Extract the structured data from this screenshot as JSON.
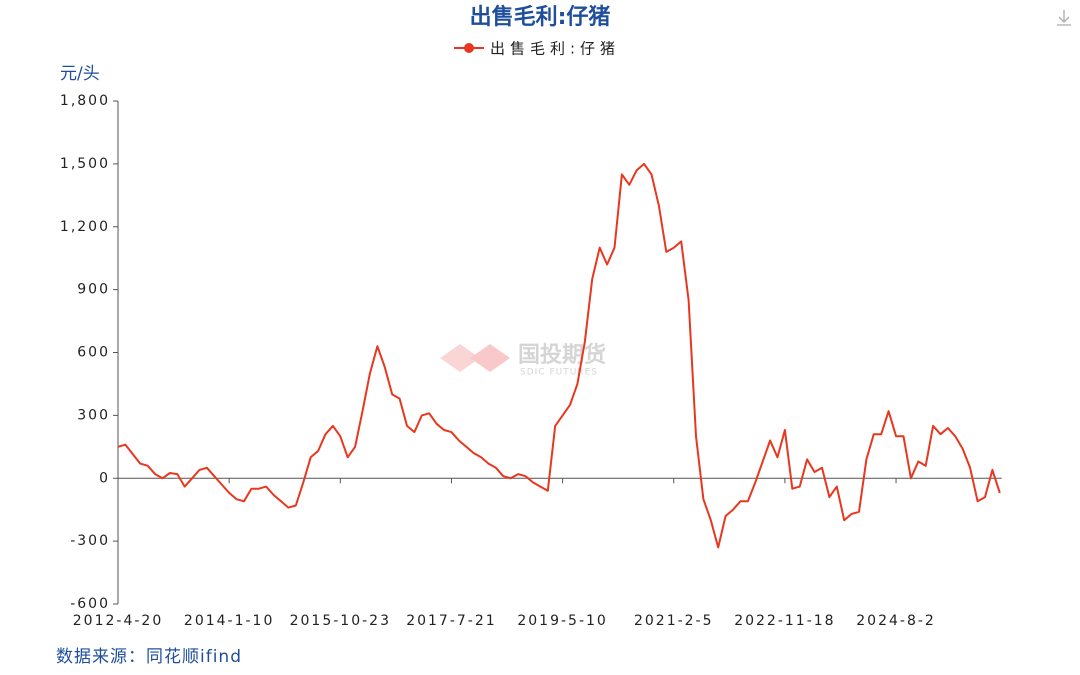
{
  "chart_data": {
    "type": "line",
    "title": "出售毛利:仔猪",
    "y_label": "元/头",
    "source": "数据来源：同花顺ifind",
    "watermark": {
      "text": "国投期货",
      "subtext": "SDIC FUTURES"
    },
    "legend_position": "top",
    "categories": [
      "2012-4-20",
      null,
      null,
      null,
      null,
      null,
      null,
      null,
      null,
      null,
      null,
      null,
      null,
      null,
      null,
      "2014-1-10",
      null,
      null,
      null,
      null,
      null,
      null,
      null,
      null,
      null,
      null,
      null,
      null,
      null,
      null,
      "2015-10-23",
      null,
      null,
      null,
      null,
      null,
      null,
      null,
      null,
      null,
      null,
      null,
      null,
      null,
      null,
      "2017-7-21",
      null,
      null,
      null,
      null,
      null,
      null,
      null,
      null,
      null,
      null,
      null,
      null,
      null,
      null,
      "2019-5-10",
      null,
      null,
      null,
      null,
      null,
      null,
      null,
      null,
      null,
      null,
      null,
      null,
      null,
      null,
      "2021-2-5",
      null,
      null,
      null,
      null,
      null,
      null,
      null,
      null,
      null,
      null,
      null,
      null,
      null,
      null,
      "2022-11-18",
      null,
      null,
      null,
      null,
      null,
      null,
      null,
      null,
      null,
      null,
      null,
      null,
      null,
      null,
      "2024-8-2",
      null,
      null,
      null,
      null,
      null,
      null,
      null,
      null,
      null,
      null,
      null,
      null,
      null,
      null
    ],
    "series": [
      {
        "name": "出售毛利:仔猪",
        "color": "#e8371e",
        "values": [
          150,
          160,
          115,
          70,
          60,
          20,
          0,
          25,
          20,
          -40,
          0,
          40,
          50,
          10,
          -30,
          -70,
          -100,
          -110,
          -50,
          -50,
          -40,
          -80,
          -110,
          -140,
          -130,
          -20,
          100,
          130,
          210,
          250,
          200,
          100,
          150,
          320,
          500,
          630,
          530,
          400,
          380,
          250,
          220,
          300,
          310,
          260,
          230,
          220,
          180,
          150,
          120,
          100,
          70,
          50,
          10,
          0,
          20,
          10,
          -20,
          -40,
          -60,
          250,
          300,
          350,
          450,
          650,
          950,
          1100,
          1020,
          1100,
          1450,
          1400,
          1470,
          1500,
          1450,
          1300,
          1080,
          1100,
          1130,
          850,
          200,
          -100,
          -200,
          -330,
          -180,
          -150,
          -110,
          -110,
          -20,
          80,
          180,
          100,
          230,
          -50,
          -40,
          90,
          30,
          50,
          -90,
          -40,
          -200,
          -170,
          -160,
          90,
          210,
          210,
          320,
          200,
          200,
          0,
          80,
          60,
          250,
          210,
          240,
          200,
          140,
          50,
          -110,
          -90,
          40,
          -70
        ]
      }
    ],
    "ylim": [
      -600,
      1800
    ],
    "yticks": [
      -600,
      -300,
      0,
      300,
      600,
      900,
      {
        "value": 1200,
        "label": "1,200"
      },
      {
        "value": 1500,
        "label": "1,500"
      },
      {
        "value": 1800,
        "label": "1,800"
      }
    ],
    "grid": false
  }
}
